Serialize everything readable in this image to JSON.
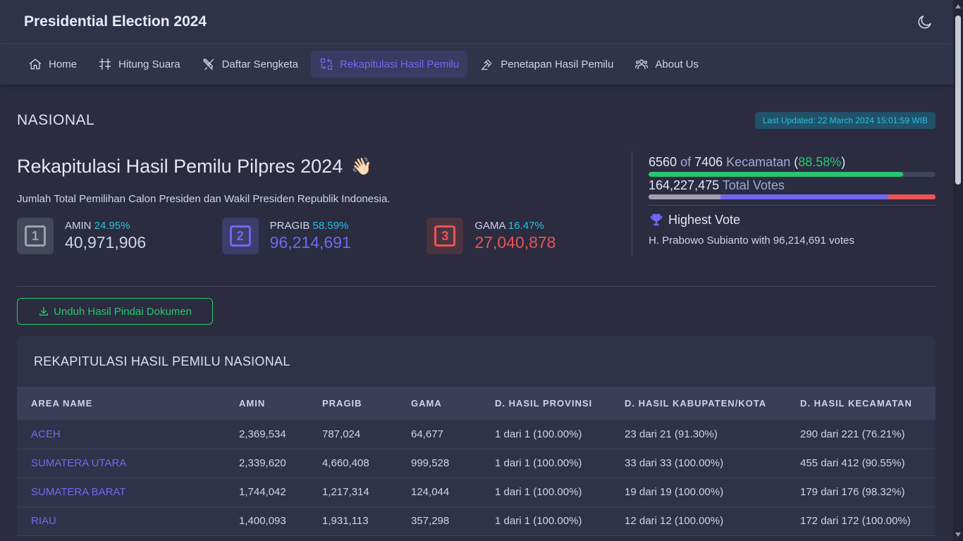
{
  "header": {
    "title": "Presidential Election 2024",
    "theme_icon": "moon-icon"
  },
  "nav": [
    {
      "label": "Home",
      "icon": "home-icon",
      "active": false
    },
    {
      "label": "Hitung Suara",
      "icon": "sliders-icon",
      "active": false
    },
    {
      "label": "Daftar Sengketa",
      "icon": "swords-icon",
      "active": false
    },
    {
      "label": "Rekapitulasi Hasil Pemilu",
      "icon": "exchange-icon",
      "active": true
    },
    {
      "label": "Penetapan Hasil Pemilu",
      "icon": "gavel-icon",
      "active": false
    },
    {
      "label": "About Us",
      "icon": "users-icon",
      "active": false
    }
  ],
  "scope": "NASIONAL",
  "last_updated": "Last Updated: 22 March 2024 15:01:59 WIB",
  "summary": {
    "title": "Rekapitulasi Hasil Pemilu Pilpres 2024",
    "title_emoji": "👋🏻",
    "description": "Jumlah Total Pemilihan Calon Presiden dan Wakil Presiden Republik Indonesia.",
    "candidates": [
      {
        "number": "1",
        "name": "AMIN",
        "pct": "24.95%",
        "votes": "40,971,906",
        "color": "#9fa1b1",
        "bg": "#45475a"
      },
      {
        "number": "2",
        "name": "PRAGIB",
        "pct": "58.59%",
        "votes": "96,214,691",
        "color": "#7367f0",
        "bg": "#3d3e6a"
      },
      {
        "number": "3",
        "name": "GAMA",
        "pct": "16.47%",
        "votes": "27,040,878",
        "color": "#ea5455",
        "bg": "#4b3441"
      }
    ]
  },
  "progress": {
    "done": "6560",
    "of": "of",
    "total": "7406",
    "unit": "Kecamatan",
    "pct": "88.58%",
    "pct_value": 88.58,
    "total_votes": "164,227,475",
    "total_votes_label": "Total Votes",
    "vote_share": [
      24.95,
      58.59,
      16.47
    ],
    "vote_colors": [
      "#9fa1b1",
      "#7367f0",
      "#ea5455"
    ]
  },
  "highest": {
    "title": "Highest Vote",
    "icon": "trophy-icon",
    "desc": "H. Prabowo Subianto with 96,214,691 votes"
  },
  "download_label": "Unduh Hasil Pindai Dokumen",
  "table": {
    "title": "REKAPITULASI HASIL PEMILU NASIONAL",
    "headers": [
      "AREA NAME",
      "AMIN",
      "PRAGIB",
      "GAMA",
      "D. HASIL PROVINSI",
      "D. HASIL KABUPATEN/KOTA",
      "D. HASIL KECAMATAN"
    ],
    "rows": [
      [
        "ACEH",
        "2,369,534",
        "787,024",
        "64,677",
        "1 dari 1 (100.00%)",
        "23 dari 21 (91.30%)",
        "290 dari 221 (76.21%)"
      ],
      [
        "SUMATERA UTARA",
        "2,339,620",
        "4,660,408",
        "999,528",
        "1 dari 1 (100.00%)",
        "33 dari 33 (100.00%)",
        "455 dari 412 (90.55%)"
      ],
      [
        "SUMATERA BARAT",
        "1,744,042",
        "1,217,314",
        "124,044",
        "1 dari 1 (100.00%)",
        "19 dari 19 (100.00%)",
        "179 dari 176 (98.32%)"
      ],
      [
        "RIAU",
        "1,400,093",
        "1,931,113",
        "357,298",
        "1 dari 1 (100.00%)",
        "12 dari 12 (100.00%)",
        "172 dari 172 (100.00%)"
      ]
    ]
  }
}
